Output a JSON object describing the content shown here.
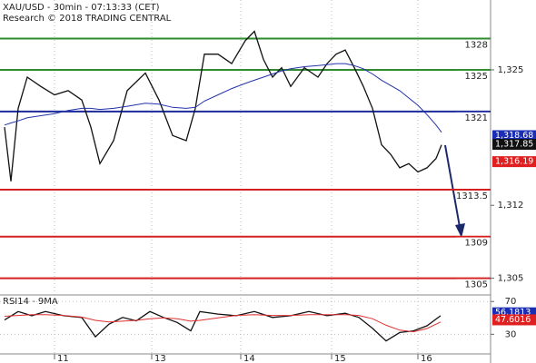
{
  "chart_data": [
    {
      "type": "line",
      "title": "XAU/USD - 30min - 07:13:33 (CET)",
      "subtitle": "Research © 2018 TRADING CENTRAL",
      "x": [
        2.5,
        6,
        10,
        15,
        22.5,
        30,
        37.5,
        45,
        50,
        55,
        62.5,
        70,
        80,
        87.5,
        95,
        102.5,
        107.5,
        112.5,
        120,
        127.5,
        135,
        140,
        145,
        150,
        155,
        160,
        167.5,
        175,
        180,
        185,
        190,
        195,
        200,
        205,
        210,
        215,
        220,
        225,
        230,
        235,
        240,
        243
      ],
      "series": [
        {
          "color": "#111111",
          "values": [
            1319.5,
            1314.3,
            1321.3,
            1324.3,
            1323.4,
            1322.6,
            1323,
            1322.1,
            1319.5,
            1316,
            1318.2,
            1323,
            1324.7,
            1322.1,
            1318.7,
            1318.2,
            1321.3,
            1326.5,
            1326.5,
            1325.6,
            1327.8,
            1328.7,
            1326,
            1324.3,
            1325.2,
            1323.4,
            1325.2,
            1324.3,
            1325.6,
            1326.5,
            1326.9,
            1325.2,
            1323.4,
            1321.3,
            1317.8,
            1316.9,
            1315.6,
            1316,
            1315.2,
            1315.6,
            1316.5,
            1317.8
          ]
        },
        {
          "color": "#2233aa",
          "values": [
            1319.7,
            1319.9,
            1320.1,
            1320.4,
            1320.6,
            1320.8,
            1321.1,
            1321.3,
            1321.3,
            1321.2,
            1321.3,
            1321.5,
            1321.8,
            1321.7,
            1321.4,
            1321.3,
            1321.4,
            1322,
            1322.6,
            1323.2,
            1323.7,
            1324,
            1324.3,
            1324.6,
            1324.9,
            1325.1,
            1325.3,
            1325.4,
            1325.5,
            1325.6,
            1325.6,
            1325.4,
            1325.1,
            1324.6,
            1324,
            1323.5,
            1323,
            1322.3,
            1321.6,
            1320.7,
            1319.7,
            1319
          ]
        }
      ],
      "xlim": [
        0,
        270
      ],
      "xticks": [
        {
          "value": 30,
          "label": "11"
        },
        {
          "value": 83.5,
          "label": "13"
        },
        {
          "value": 132.5,
          "label": "14"
        },
        {
          "value": 182.5,
          "label": "15"
        },
        {
          "value": 230,
          "label": "16"
        }
      ],
      "ylim": [
        1303.4,
        1331.7
      ],
      "yticks": [
        {
          "value": 1325,
          "label": "1,325"
        },
        {
          "value": 1312,
          "label": "1,312"
        },
        {
          "value": 1305,
          "label": "1,305"
        }
      ],
      "grid": true,
      "levels": [
        {
          "value": 1328,
          "label": "1328",
          "color": "#2e8b2e"
        },
        {
          "value": 1325,
          "label": "1325",
          "color": "#2e8b2e"
        },
        {
          "value": 1321,
          "label": "1321",
          "color": "#1c2a9c"
        },
        {
          "value": 1313.5,
          "label": "1313.5",
          "color": "#d42020"
        },
        {
          "value": 1309,
          "label": "1309",
          "color": "#d42020"
        },
        {
          "value": 1305,
          "label": "1305",
          "color": "#d42020"
        }
      ],
      "price_labels": [
        {
          "value": 1318.68,
          "label": "1,318.68",
          "color": "#1c2db5"
        },
        {
          "value": 1317.85,
          "label": "1,317.85",
          "color": "#111111"
        },
        {
          "value": 1316.19,
          "label": "1,316.19",
          "color": "#e02020"
        }
      ]
    },
    {
      "type": "line",
      "title": "RSI14 - 9MA",
      "x": [
        2.5,
        10,
        17.5,
        25,
        35,
        45,
        52.5,
        60,
        67.5,
        75,
        82.5,
        90,
        97.5,
        105,
        110,
        120,
        130,
        140,
        150,
        160,
        170,
        180,
        190,
        197.5,
        205,
        212.5,
        220,
        227.5,
        235,
        242.5
      ],
      "series": [
        {
          "color": "#111111",
          "values": [
            47.4,
            57.7,
            52.6,
            57.7,
            52.6,
            50.5,
            26.9,
            42.3,
            50.5,
            46.4,
            57.7,
            50.5,
            44.4,
            34.1,
            57.7,
            54.6,
            52.6,
            57.7,
            50.5,
            52.6,
            57.7,
            52.6,
            55.6,
            50.5,
            37.2,
            21.8,
            32.1,
            34.1,
            40.3,
            52.6
          ]
        },
        {
          "color": "#e03030",
          "values": [
            52,
            53,
            54,
            54,
            53,
            51,
            47,
            45,
            46,
            47,
            49,
            50,
            49,
            46,
            47,
            50,
            53,
            54,
            53,
            53,
            54,
            54,
            54,
            53,
            49,
            41,
            35,
            33,
            37,
            45
          ]
        }
      ],
      "xlim": [
        0,
        270
      ],
      "ylim": [
        6,
        78
      ],
      "yticks": [
        30,
        70
      ],
      "price_labels": [
        {
          "value": 56.1813,
          "label": "56.1813",
          "color": "#1c2db5"
        },
        {
          "value": 47.6016,
          "label": "47.6016",
          "color": "#e02020"
        }
      ]
    }
  ]
}
